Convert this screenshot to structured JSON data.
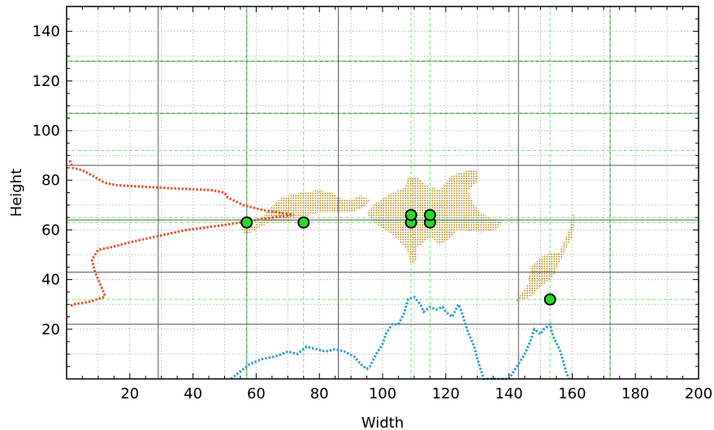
{
  "chart_data": {
    "type": "scatter",
    "title": "",
    "xlabel": "Width",
    "ylabel": "Height",
    "xlim": [
      0,
      200
    ],
    "ylim": [
      0,
      150
    ],
    "x_ticks": [
      20,
      40,
      60,
      80,
      100,
      120,
      140,
      160,
      180,
      200
    ],
    "y_ticks": [
      20,
      40,
      60,
      80,
      100,
      120,
      140
    ],
    "grid": {
      "minor_dotted": true,
      "dark_lines_x": [
        29,
        57,
        86,
        143,
        172
      ],
      "dark_lines_y": [
        22,
        43,
        64,
        86,
        107,
        128
      ],
      "green_lines_x": [
        57,
        75,
        109,
        115,
        153,
        172
      ],
      "green_lines_y": [
        32,
        63,
        65,
        92,
        107,
        128
      ]
    },
    "colors": {
      "blob": "#b8860b",
      "left_profile": "#e8532e",
      "bottom_profile": "#2e9fd1",
      "marker_fill": "#22dd22",
      "marker_edge": "#000000",
      "dark_grid": "#555555",
      "green_grid": "#66ee66",
      "minor_grid": "#bbbbbb"
    },
    "markers": [
      {
        "x": 57,
        "y": 63
      },
      {
        "x": 75,
        "y": 63
      },
      {
        "x": 109,
        "y": 63
      },
      {
        "x": 109,
        "y": 66
      },
      {
        "x": 115,
        "y": 63
      },
      {
        "x": 115,
        "y": 66
      },
      {
        "x": 153,
        "y": 32
      }
    ],
    "blobs": [
      [
        [
          55,
          60
        ],
        [
          60,
          62
        ],
        [
          64,
          68
        ],
        [
          68,
          73
        ],
        [
          74,
          75
        ],
        [
          80,
          76
        ],
        [
          84,
          75
        ],
        [
          86,
          73
        ],
        [
          90,
          72
        ],
        [
          93,
          74
        ],
        [
          96,
          72
        ],
        [
          94,
          69
        ],
        [
          90,
          67
        ],
        [
          86,
          67
        ],
        [
          80,
          67
        ],
        [
          74,
          65
        ],
        [
          70,
          63
        ],
        [
          64,
          63
        ],
        [
          60,
          60
        ],
        [
          57,
          58
        ]
      ],
      [
        [
          95,
          67
        ],
        [
          98,
          71
        ],
        [
          103,
          75
        ],
        [
          107,
          77
        ],
        [
          108,
          81
        ],
        [
          111,
          81
        ],
        [
          114,
          78
        ],
        [
          118,
          76
        ],
        [
          122,
          82
        ],
        [
          127,
          84
        ],
        [
          130,
          84
        ],
        [
          130,
          79
        ],
        [
          127,
          76
        ],
        [
          129,
          70
        ],
        [
          131,
          67
        ],
        [
          134,
          65
        ],
        [
          138,
          63
        ],
        [
          136,
          60
        ],
        [
          131,
          59
        ],
        [
          124,
          60
        ],
        [
          121,
          56
        ],
        [
          118,
          54
        ],
        [
          115,
          57
        ],
        [
          111,
          53
        ],
        [
          111,
          48
        ],
        [
          109,
          46
        ],
        [
          108,
          51
        ],
        [
          105,
          56
        ],
        [
          101,
          60
        ],
        [
          97,
          63
        ]
      ],
      [
        [
          142,
          31
        ],
        [
          146,
          38
        ],
        [
          147,
          45
        ],
        [
          151,
          50
        ],
        [
          156,
          51
        ],
        [
          157,
          54
        ],
        [
          159,
          60
        ],
        [
          160,
          67
        ],
        [
          161,
          65
        ],
        [
          160,
          57
        ],
        [
          156,
          47
        ],
        [
          154,
          41
        ],
        [
          150,
          37
        ],
        [
          147,
          33
        ]
      ]
    ],
    "left_profile": [
      [
        1,
        88
      ],
      [
        2,
        85
      ],
      [
        5,
        84
      ],
      [
        8,
        82
      ],
      [
        12,
        79
      ],
      [
        16,
        78
      ],
      [
        30,
        77
      ],
      [
        46,
        76
      ],
      [
        50,
        75
      ],
      [
        51,
        73
      ],
      [
        56,
        70
      ],
      [
        62,
        68
      ],
      [
        72,
        66
      ],
      [
        65,
        65
      ],
      [
        50,
        62
      ],
      [
        38,
        60
      ],
      [
        27,
        57
      ],
      [
        20,
        55
      ],
      [
        14,
        53
      ],
      [
        10,
        52
      ],
      [
        8,
        48
      ],
      [
        9,
        43
      ],
      [
        10,
        40
      ],
      [
        11,
        37
      ],
      [
        12,
        34
      ],
      [
        12,
        33
      ],
      [
        7,
        31
      ],
      [
        2,
        30
      ],
      [
        1,
        29
      ]
    ],
    "bottom_profile": [
      [
        52,
        0
      ],
      [
        55,
        3
      ],
      [
        58,
        6
      ],
      [
        62,
        8
      ],
      [
        66,
        9
      ],
      [
        70,
        11
      ],
      [
        73,
        10
      ],
      [
        76,
        13
      ],
      [
        79,
        12
      ],
      [
        82,
        11
      ],
      [
        85,
        12
      ],
      [
        88,
        11
      ],
      [
        91,
        9
      ],
      [
        93,
        6
      ],
      [
        95,
        4
      ],
      [
        96,
        5
      ],
      [
        98,
        10
      ],
      [
        100,
        14
      ],
      [
        101,
        18
      ],
      [
        103,
        22
      ],
      [
        105,
        22
      ],
      [
        107,
        27
      ],
      [
        108,
        32
      ],
      [
        110,
        33
      ],
      [
        112,
        30
      ],
      [
        113,
        27
      ],
      [
        115,
        29
      ],
      [
        117,
        28
      ],
      [
        119,
        29
      ],
      [
        120,
        27
      ],
      [
        122,
        25
      ],
      [
        124,
        30
      ],
      [
        125,
        27
      ],
      [
        127,
        19
      ],
      [
        129,
        13
      ],
      [
        130,
        8
      ],
      [
        131,
        4
      ],
      [
        132,
        0
      ],
      [
        140,
        0
      ],
      [
        142,
        4
      ],
      [
        145,
        10
      ],
      [
        147,
        16
      ],
      [
        148,
        20
      ],
      [
        150,
        18
      ],
      [
        151,
        20
      ],
      [
        153,
        22
      ],
      [
        154,
        17
      ],
      [
        156,
        12
      ],
      [
        157,
        8
      ],
      [
        158,
        3
      ],
      [
        159,
        0
      ]
    ]
  }
}
